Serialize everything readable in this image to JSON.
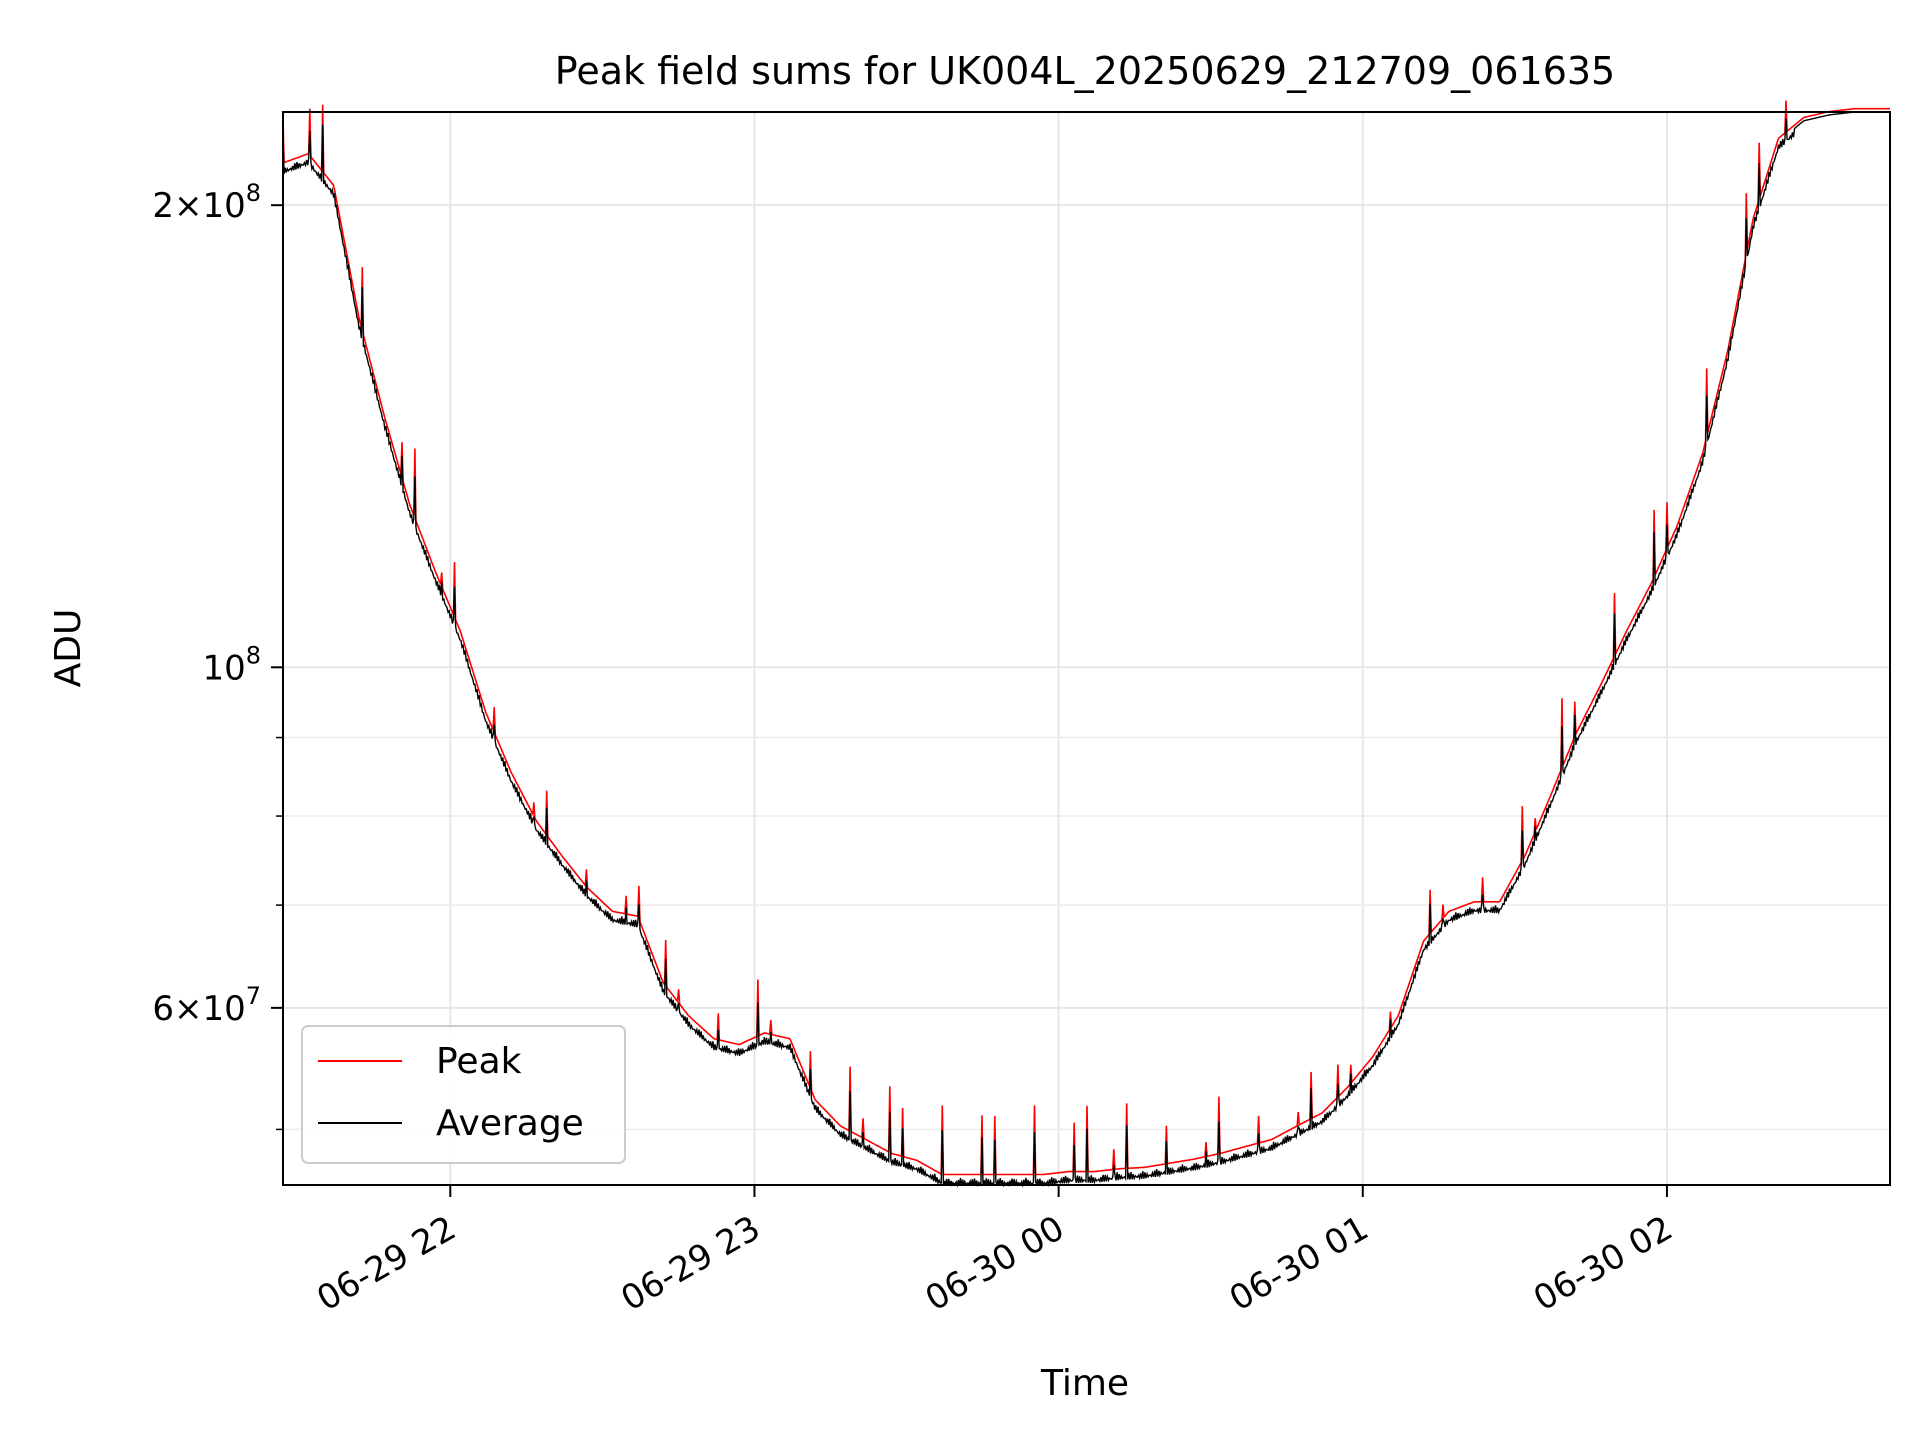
{
  "chart_data": {
    "type": "line",
    "title": "Peak field sums for UK004L_20250629_212709_061635",
    "xlabel": "Time",
    "ylabel": "ADU",
    "xlim": [
      "2025-06-29 21:27",
      "2025-06-30 02:44"
    ],
    "ylim": [
      46000000,
      230000000
    ],
    "yscale": "log",
    "grid": true,
    "legend": "lower-left",
    "x_ticks": [
      {
        "time": "2025-06-29 22:00",
        "label": "06-29 22"
      },
      {
        "time": "2025-06-29 23:00",
        "label": "06-29 23"
      },
      {
        "time": "2025-06-30 00:00",
        "label": "06-30 00"
      },
      {
        "time": "2025-06-30 01:00",
        "label": "06-30 01"
      },
      {
        "time": "2025-06-30 02:00",
        "label": "06-30 02"
      }
    ],
    "y_ticks": [
      {
        "value": 200000000,
        "base": "2×10",
        "exp": "8"
      },
      {
        "value": 100000000,
        "base": "10",
        "exp": "8"
      },
      {
        "value": 60000000,
        "base": "6×10",
        "exp": "7"
      }
    ],
    "y_minor_ticks": [
      50000000,
      70000000,
      80000000,
      90000000
    ],
    "baseline_profile": {
      "time": [
        "2025-06-29 21:27",
        "2025-06-29 21:32",
        "2025-06-29 21:37",
        "2025-06-29 21:42",
        "2025-06-29 21:47",
        "2025-06-29 21:52",
        "2025-06-29 21:57",
        "2025-06-29 22:02",
        "2025-06-29 22:07",
        "2025-06-29 22:12",
        "2025-06-29 22:17",
        "2025-06-29 22:22",
        "2025-06-29 22:27",
        "2025-06-29 22:32",
        "2025-06-29 22:37",
        "2025-06-29 22:42",
        "2025-06-29 22:47",
        "2025-06-29 22:52",
        "2025-06-29 22:57",
        "2025-06-29 23:02",
        "2025-06-29 23:07",
        "2025-06-29 23:12",
        "2025-06-29 23:17",
        "2025-06-29 23:22",
        "2025-06-29 23:27",
        "2025-06-29 23:32",
        "2025-06-29 23:37",
        "2025-06-29 23:42",
        "2025-06-29 23:47",
        "2025-06-29 23:52",
        "2025-06-29 23:57",
        "2025-06-30 00:02",
        "2025-06-30 00:07",
        "2025-06-30 00:12",
        "2025-06-30 00:17",
        "2025-06-30 00:22",
        "2025-06-30 00:27",
        "2025-06-30 00:32",
        "2025-06-30 00:37",
        "2025-06-30 00:42",
        "2025-06-30 00:47",
        "2025-06-30 00:52",
        "2025-06-30 00:57",
        "2025-06-30 01:02",
        "2025-06-30 01:07",
        "2025-06-30 01:12",
        "2025-06-30 01:17",
        "2025-06-30 01:22",
        "2025-06-30 01:27",
        "2025-06-30 01:32",
        "2025-06-30 01:37",
        "2025-06-30 01:42",
        "2025-06-30 01:47",
        "2025-06-30 01:52",
        "2025-06-30 01:57",
        "2025-06-30 02:02",
        "2025-06-30 02:07",
        "2025-06-30 02:12",
        "2025-06-30 02:17",
        "2025-06-30 02:22",
        "2025-06-30 02:27",
        "2025-06-30 02:32",
        "2025-06-30 02:37",
        "2025-06-30 02:44"
      ],
      "adu": [
        212000000,
        215000000,
        205000000,
        168000000,
        145000000,
        127000000,
        115000000,
        105000000,
        93000000,
        85000000,
        79000000,
        75000000,
        71500000,
        69000000,
        68500000,
        62000000,
        59000000,
        57000000,
        56500000,
        57500000,
        57000000,
        52000000,
        50000000,
        49000000,
        48000000,
        47500000,
        46500000,
        46500000,
        46500000,
        46500000,
        46500000,
        46700000,
        46700000,
        46900000,
        47000000,
        47300000,
        47600000,
        48000000,
        48500000,
        49000000,
        50000000,
        51000000,
        53000000,
        55500000,
        59000000,
        66000000,
        69000000,
        70000000,
        70000000,
        75000000,
        82000000,
        90000000,
        97000000,
        105000000,
        113000000,
        123000000,
        137000000,
        160000000,
        195000000,
        220000000,
        227000000,
        229000000,
        230000000,
        230000000
      ]
    },
    "series": [
      {
        "name": "Peak",
        "color": "#ff0000"
      },
      {
        "name": "Average",
        "color": "#000000"
      }
    ]
  }
}
